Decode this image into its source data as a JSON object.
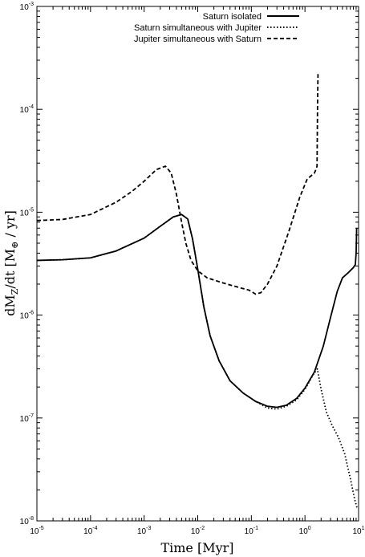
{
  "chart_data": {
    "type": "line",
    "xlabel": "Time [Myr]",
    "ylabel_parts": {
      "main": "dM",
      "sub": "Z",
      "mid": "/dt [M",
      "sub2": "⊕",
      "end": " / yr]"
    },
    "x_scale": "log",
    "y_scale": "log",
    "xlim": [
      1e-05,
      10
    ],
    "ylim": [
      1e-08,
      0.001
    ],
    "x_ticks": [
      {
        "value": 1e-05,
        "base": "10",
        "exp": "-5"
      },
      {
        "value": 0.0001,
        "base": "10",
        "exp": "-4"
      },
      {
        "value": 0.001,
        "base": "10",
        "exp": "-3"
      },
      {
        "value": 0.01,
        "base": "10",
        "exp": "-2"
      },
      {
        "value": 0.1,
        "base": "10",
        "exp": "-1"
      },
      {
        "value": 1,
        "base": "10",
        "exp": "0"
      },
      {
        "value": 10,
        "base": "10",
        "exp": "1"
      }
    ],
    "y_ticks": [
      {
        "value": 1e-08,
        "base": "10",
        "exp": "-8"
      },
      {
        "value": 1e-07,
        "base": "10",
        "exp": "-7"
      },
      {
        "value": 1e-06,
        "base": "10",
        "exp": "-6"
      },
      {
        "value": 1e-05,
        "base": "10",
        "exp": "-5"
      },
      {
        "value": 0.0001,
        "base": "10",
        "exp": "-4"
      },
      {
        "value": 0.001,
        "base": "10",
        "exp": "-3"
      }
    ],
    "grid": false,
    "legend_position": "top-right",
    "series": [
      {
        "name": "Saturn isolated",
        "style": "solid",
        "color": "#000000",
        "points": [
          [
            1e-05,
            3.4e-06
          ],
          [
            3e-05,
            3.45e-06
          ],
          [
            0.0001,
            3.6e-06
          ],
          [
            0.0003,
            4.2e-06
          ],
          [
            0.001,
            5.6e-06
          ],
          [
            0.002,
            7.3e-06
          ],
          [
            0.0035,
            9e-06
          ],
          [
            0.005,
            9.5e-06
          ],
          [
            0.0065,
            8.6e-06
          ],
          [
            0.008,
            5.5e-06
          ],
          [
            0.01,
            2.8e-06
          ],
          [
            0.013,
            1.2e-06
          ],
          [
            0.017,
            6.3e-07
          ],
          [
            0.025,
            3.6e-07
          ],
          [
            0.04,
            2.3e-07
          ],
          [
            0.07,
            1.75e-07
          ],
          [
            0.12,
            1.45e-07
          ],
          [
            0.2,
            1.3e-07
          ],
          [
            0.3,
            1.27e-07
          ],
          [
            0.45,
            1.33e-07
          ],
          [
            0.7,
            1.55e-07
          ],
          [
            1.0,
            1.95e-07
          ],
          [
            1.5,
            2.8e-07
          ],
          [
            2.2,
            5e-07
          ],
          [
            3.0,
            9.5e-07
          ],
          [
            4.0,
            1.7e-06
          ],
          [
            5.0,
            2.3e-06
          ],
          [
            6.5,
            2.6e-06
          ],
          [
            8.0,
            2.9e-06
          ],
          [
            8.7,
            3.1e-06
          ],
          [
            9.0,
            4e-06
          ],
          [
            9.2,
            7e-06
          ]
        ]
      },
      {
        "name": "Saturn simultaneous with Jupiter",
        "style": "dotted",
        "color": "#000000",
        "points": [
          [
            1e-05,
            3.4e-06
          ],
          [
            3e-05,
            3.45e-06
          ],
          [
            0.0001,
            3.6e-06
          ],
          [
            0.0003,
            4.2e-06
          ],
          [
            0.001,
            5.6e-06
          ],
          [
            0.002,
            7.3e-06
          ],
          [
            0.0035,
            9e-06
          ],
          [
            0.005,
            9.5e-06
          ],
          [
            0.0065,
            8.6e-06
          ],
          [
            0.008,
            5.5e-06
          ],
          [
            0.01,
            2.8e-06
          ],
          [
            0.013,
            1.2e-06
          ],
          [
            0.017,
            6.3e-07
          ],
          [
            0.025,
            3.6e-07
          ],
          [
            0.04,
            2.3e-07
          ],
          [
            0.07,
            1.75e-07
          ],
          [
            0.12,
            1.45e-07
          ],
          [
            0.2,
            1.25e-07
          ],
          [
            0.3,
            1.22e-07
          ],
          [
            0.45,
            1.3e-07
          ],
          [
            0.7,
            1.5e-07
          ],
          [
            1.0,
            1.9e-07
          ],
          [
            1.4,
            2.6e-07
          ],
          [
            1.7,
            3e-07
          ],
          [
            2.0,
            1.9e-07
          ],
          [
            2.5,
            1.15e-07
          ],
          [
            3.2,
            8.5e-08
          ],
          [
            4.2,
            6.5e-08
          ],
          [
            5.5,
            4.5e-08
          ],
          [
            7.0,
            2.6e-08
          ],
          [
            8.5,
            1.6e-08
          ],
          [
            9.5,
            1.3e-08
          ]
        ]
      },
      {
        "name": "Jupiter simultaneous with Saturn",
        "style": "dashed",
        "color": "#000000",
        "points": [
          [
            1e-05,
            8.3e-06
          ],
          [
            3e-05,
            8.5e-06
          ],
          [
            0.0001,
            9.5e-06
          ],
          [
            0.0003,
            1.25e-05
          ],
          [
            0.0006,
            1.6e-05
          ],
          [
            0.001,
            2e-05
          ],
          [
            0.0017,
            2.6e-05
          ],
          [
            0.0025,
            2.8e-05
          ],
          [
            0.0032,
            2.4e-05
          ],
          [
            0.004,
            1.5e-05
          ],
          [
            0.005,
            8e-06
          ],
          [
            0.006,
            5e-06
          ],
          [
            0.0075,
            3.4e-06
          ],
          [
            0.01,
            2.7e-06
          ],
          [
            0.015,
            2.3e-06
          ],
          [
            0.03,
            2.05e-06
          ],
          [
            0.06,
            1.85e-06
          ],
          [
            0.09,
            1.75e-06
          ],
          [
            0.12,
            1.6e-06
          ],
          [
            0.15,
            1.65e-06
          ],
          [
            0.2,
            2e-06
          ],
          [
            0.3,
            3e-06
          ],
          [
            0.5,
            6.5e-06
          ],
          [
            0.8,
            1.4e-05
          ],
          [
            1.1,
            2.1e-05
          ],
          [
            1.5,
            2.4e-05
          ],
          [
            1.6,
            2.6e-05
          ],
          [
            1.68,
            2.8e-05
          ],
          [
            1.72,
            0.00012
          ],
          [
            1.75,
            0.00022
          ]
        ]
      }
    ]
  }
}
